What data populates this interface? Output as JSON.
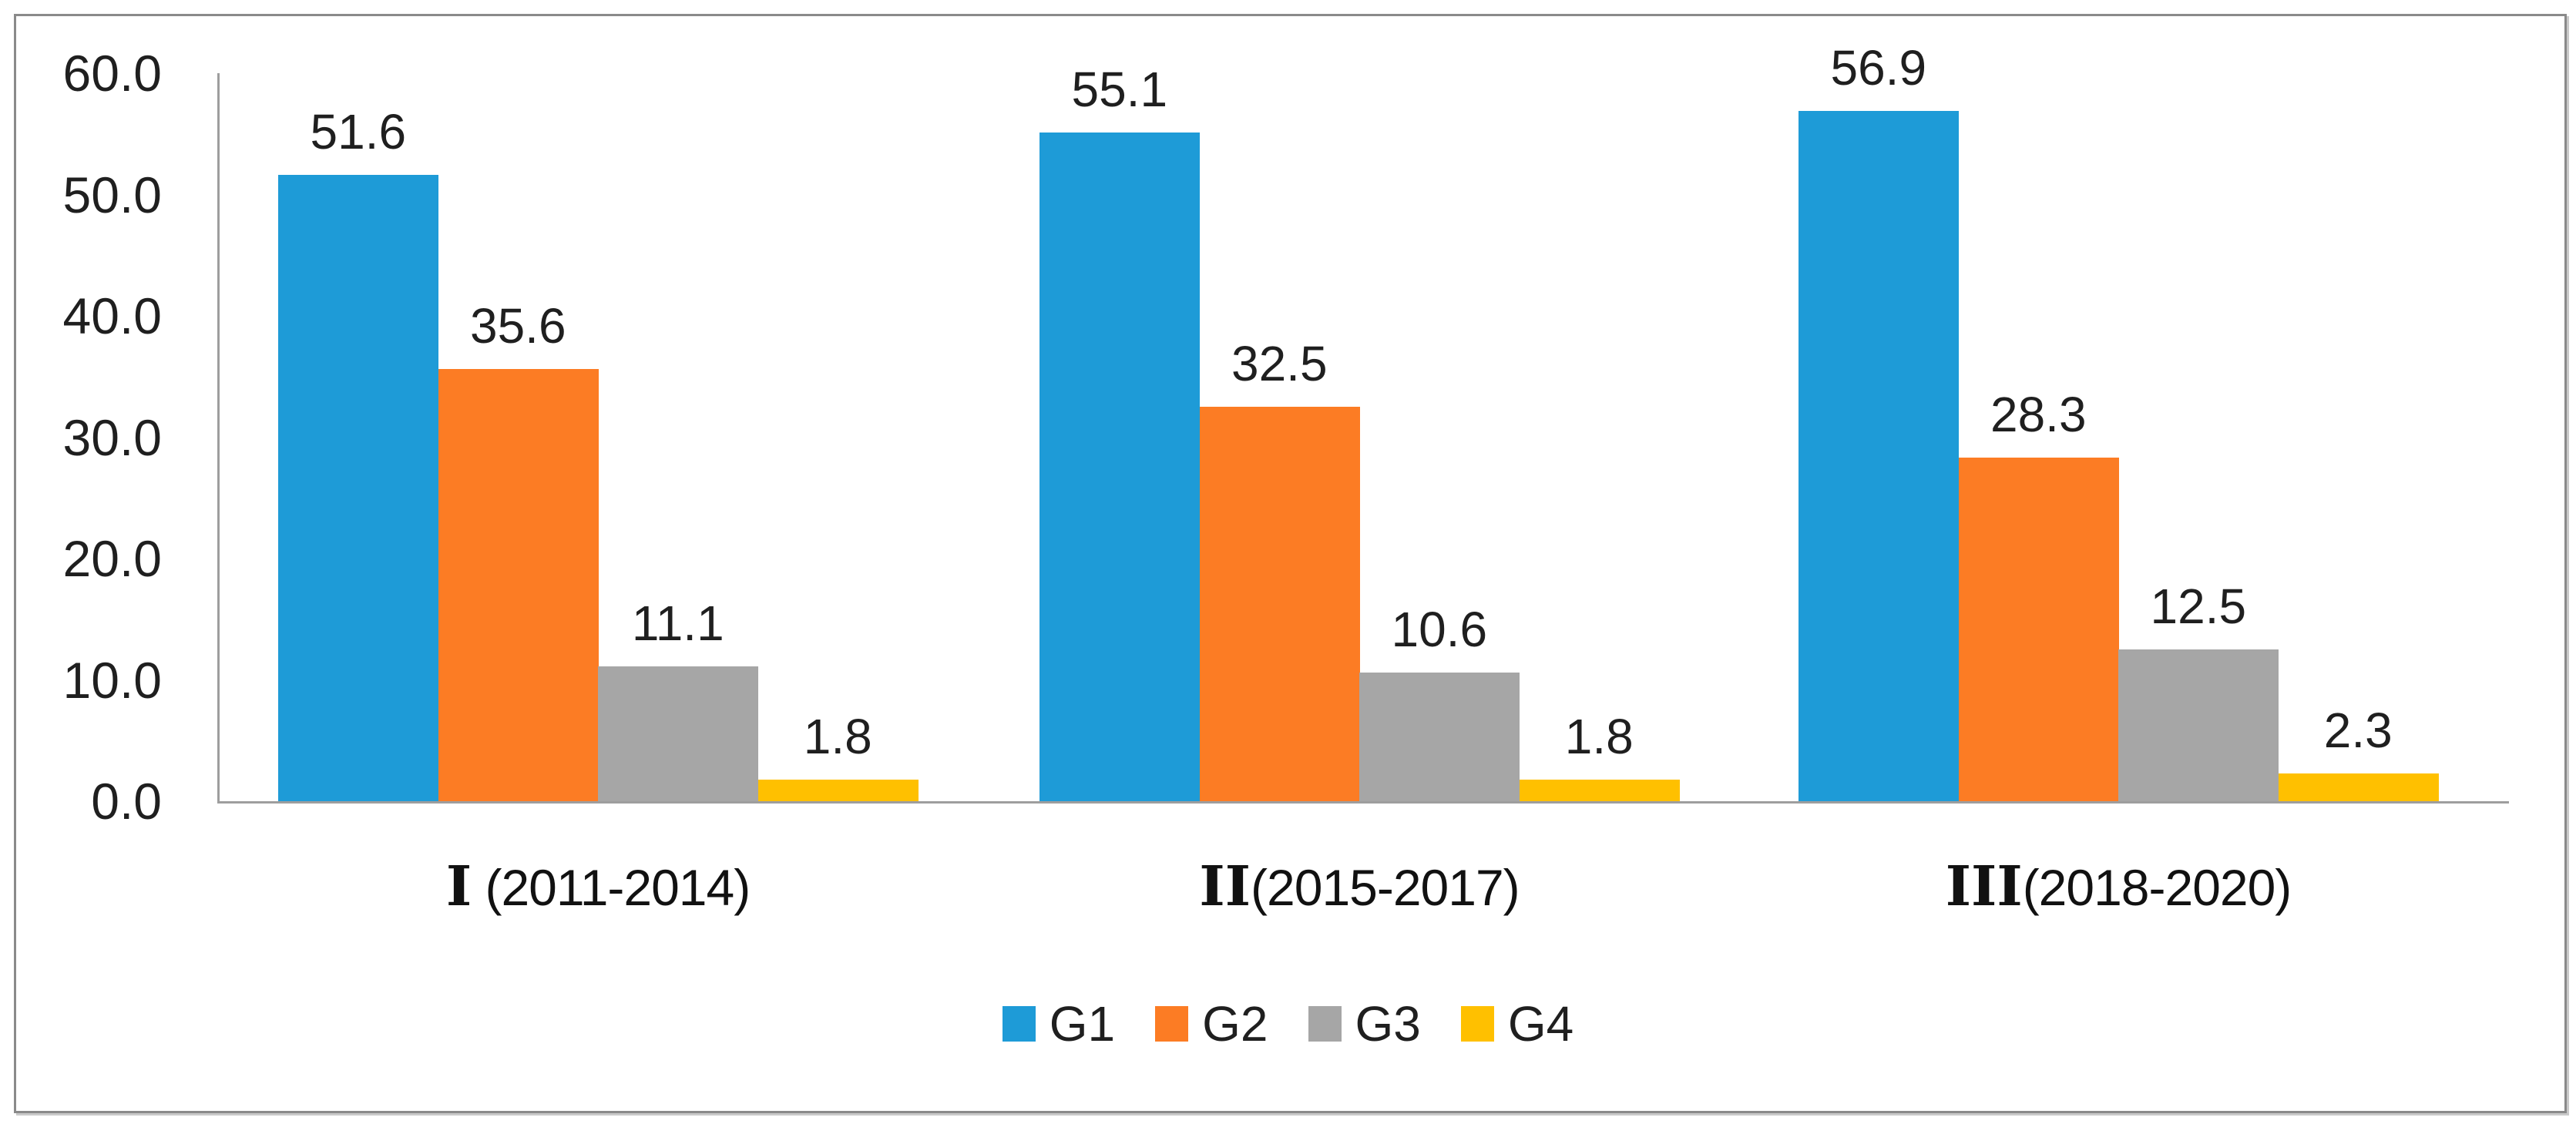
{
  "chart_data": {
    "type": "bar",
    "title": "",
    "xlabel": "",
    "ylabel": "",
    "ylim": [
      0,
      60
    ],
    "ytick_step": 10,
    "yticks": [
      "60.0",
      "50.0",
      "40.0",
      "30.0",
      "20.0",
      "10.0",
      "0.0"
    ],
    "grid": false,
    "value_labels": true,
    "legend_position": "bottom-center",
    "categories": [
      {
        "label": "I (2011-2014)",
        "numeral": "I",
        "years": " (2011-2014)"
      },
      {
        "label": "II(2015-2017)",
        "numeral": "II",
        "years": "(2015-2017)"
      },
      {
        "label": "III(2018-2020)",
        "numeral": "III",
        "years": "(2018-2020)"
      }
    ],
    "series": [
      {
        "name": "G1",
        "color": "#1E9BD7",
        "values": [
          51.6,
          55.1,
          56.9
        ]
      },
      {
        "name": "G2",
        "color": "#FC7C24",
        "values": [
          35.6,
          32.5,
          28.3
        ]
      },
      {
        "name": "G3",
        "color": "#A6A6A6",
        "values": [
          11.1,
          10.6,
          12.5
        ]
      },
      {
        "name": "G4",
        "color": "#FFC000",
        "values": [
          1.8,
          1.8,
          2.3
        ]
      }
    ],
    "colors": {
      "axis": "#9E9E9E",
      "frame_border": "#8A8A8A",
      "frame_shadow": "#C9C9C9",
      "text": "#1F1F1F",
      "background": "#FFFFFF"
    }
  }
}
